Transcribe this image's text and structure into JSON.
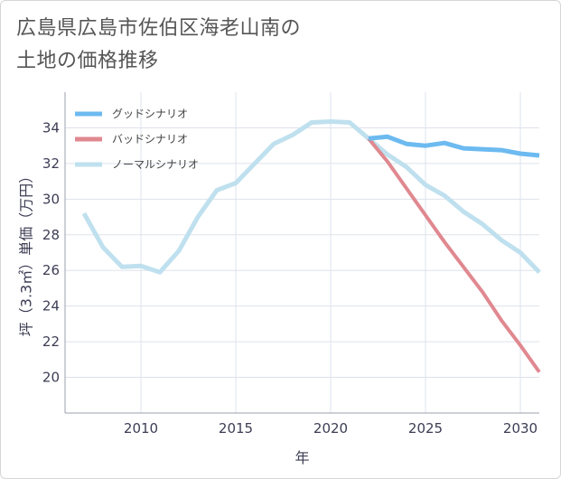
{
  "title_line1": "広島県広島市佐伯区海老山南の",
  "title_line2": "土地の価格推移",
  "chart_data": {
    "type": "line",
    "xlabel": "年",
    "ylabel": "坪（3.3㎡）単価（万円）",
    "xlim": [
      2006,
      2031
    ],
    "ylim": [
      18,
      36
    ],
    "xticks": [
      2010,
      2015,
      2020,
      2025,
      2030
    ],
    "yticks": [
      20,
      22,
      24,
      26,
      28,
      30,
      32,
      34
    ],
    "grid": true,
    "legend_position": "top-left",
    "series": [
      {
        "name": "グッドシナリオ",
        "color": "#6cbaf0",
        "width": 5,
        "x": [
          2022,
          2023,
          2024,
          2025,
          2026,
          2027,
          2028,
          2029,
          2030,
          2031
        ],
        "y": [
          33.4,
          33.5,
          33.1,
          33.0,
          33.15,
          32.85,
          32.8,
          32.75,
          32.55,
          32.45
        ]
      },
      {
        "name": "バッドシナリオ",
        "color": "#e08890",
        "width": 4,
        "x": [
          2022,
          2023,
          2024,
          2025,
          2026,
          2027,
          2028,
          2029,
          2030,
          2031
        ],
        "y": [
          33.4,
          32.1,
          30.6,
          29.1,
          27.6,
          26.2,
          24.8,
          23.2,
          21.8,
          20.3
        ]
      },
      {
        "name": "ノーマルシナリオ",
        "color": "#bfe0ee",
        "width": 5,
        "x": [
          2007,
          2008,
          2009,
          2010,
          2011,
          2012,
          2013,
          2014,
          2015,
          2016,
          2017,
          2018,
          2019,
          2020,
          2021,
          2022,
          2023,
          2024,
          2025,
          2026,
          2027,
          2028,
          2029,
          2030,
          2031
        ],
        "y": [
          29.2,
          27.3,
          26.2,
          26.25,
          25.9,
          27.1,
          29.0,
          30.5,
          30.9,
          32.0,
          33.1,
          33.6,
          34.3,
          34.35,
          34.3,
          33.4,
          32.5,
          31.8,
          30.8,
          30.2,
          29.3,
          28.6,
          27.7,
          27.0,
          25.9
        ]
      }
    ]
  }
}
